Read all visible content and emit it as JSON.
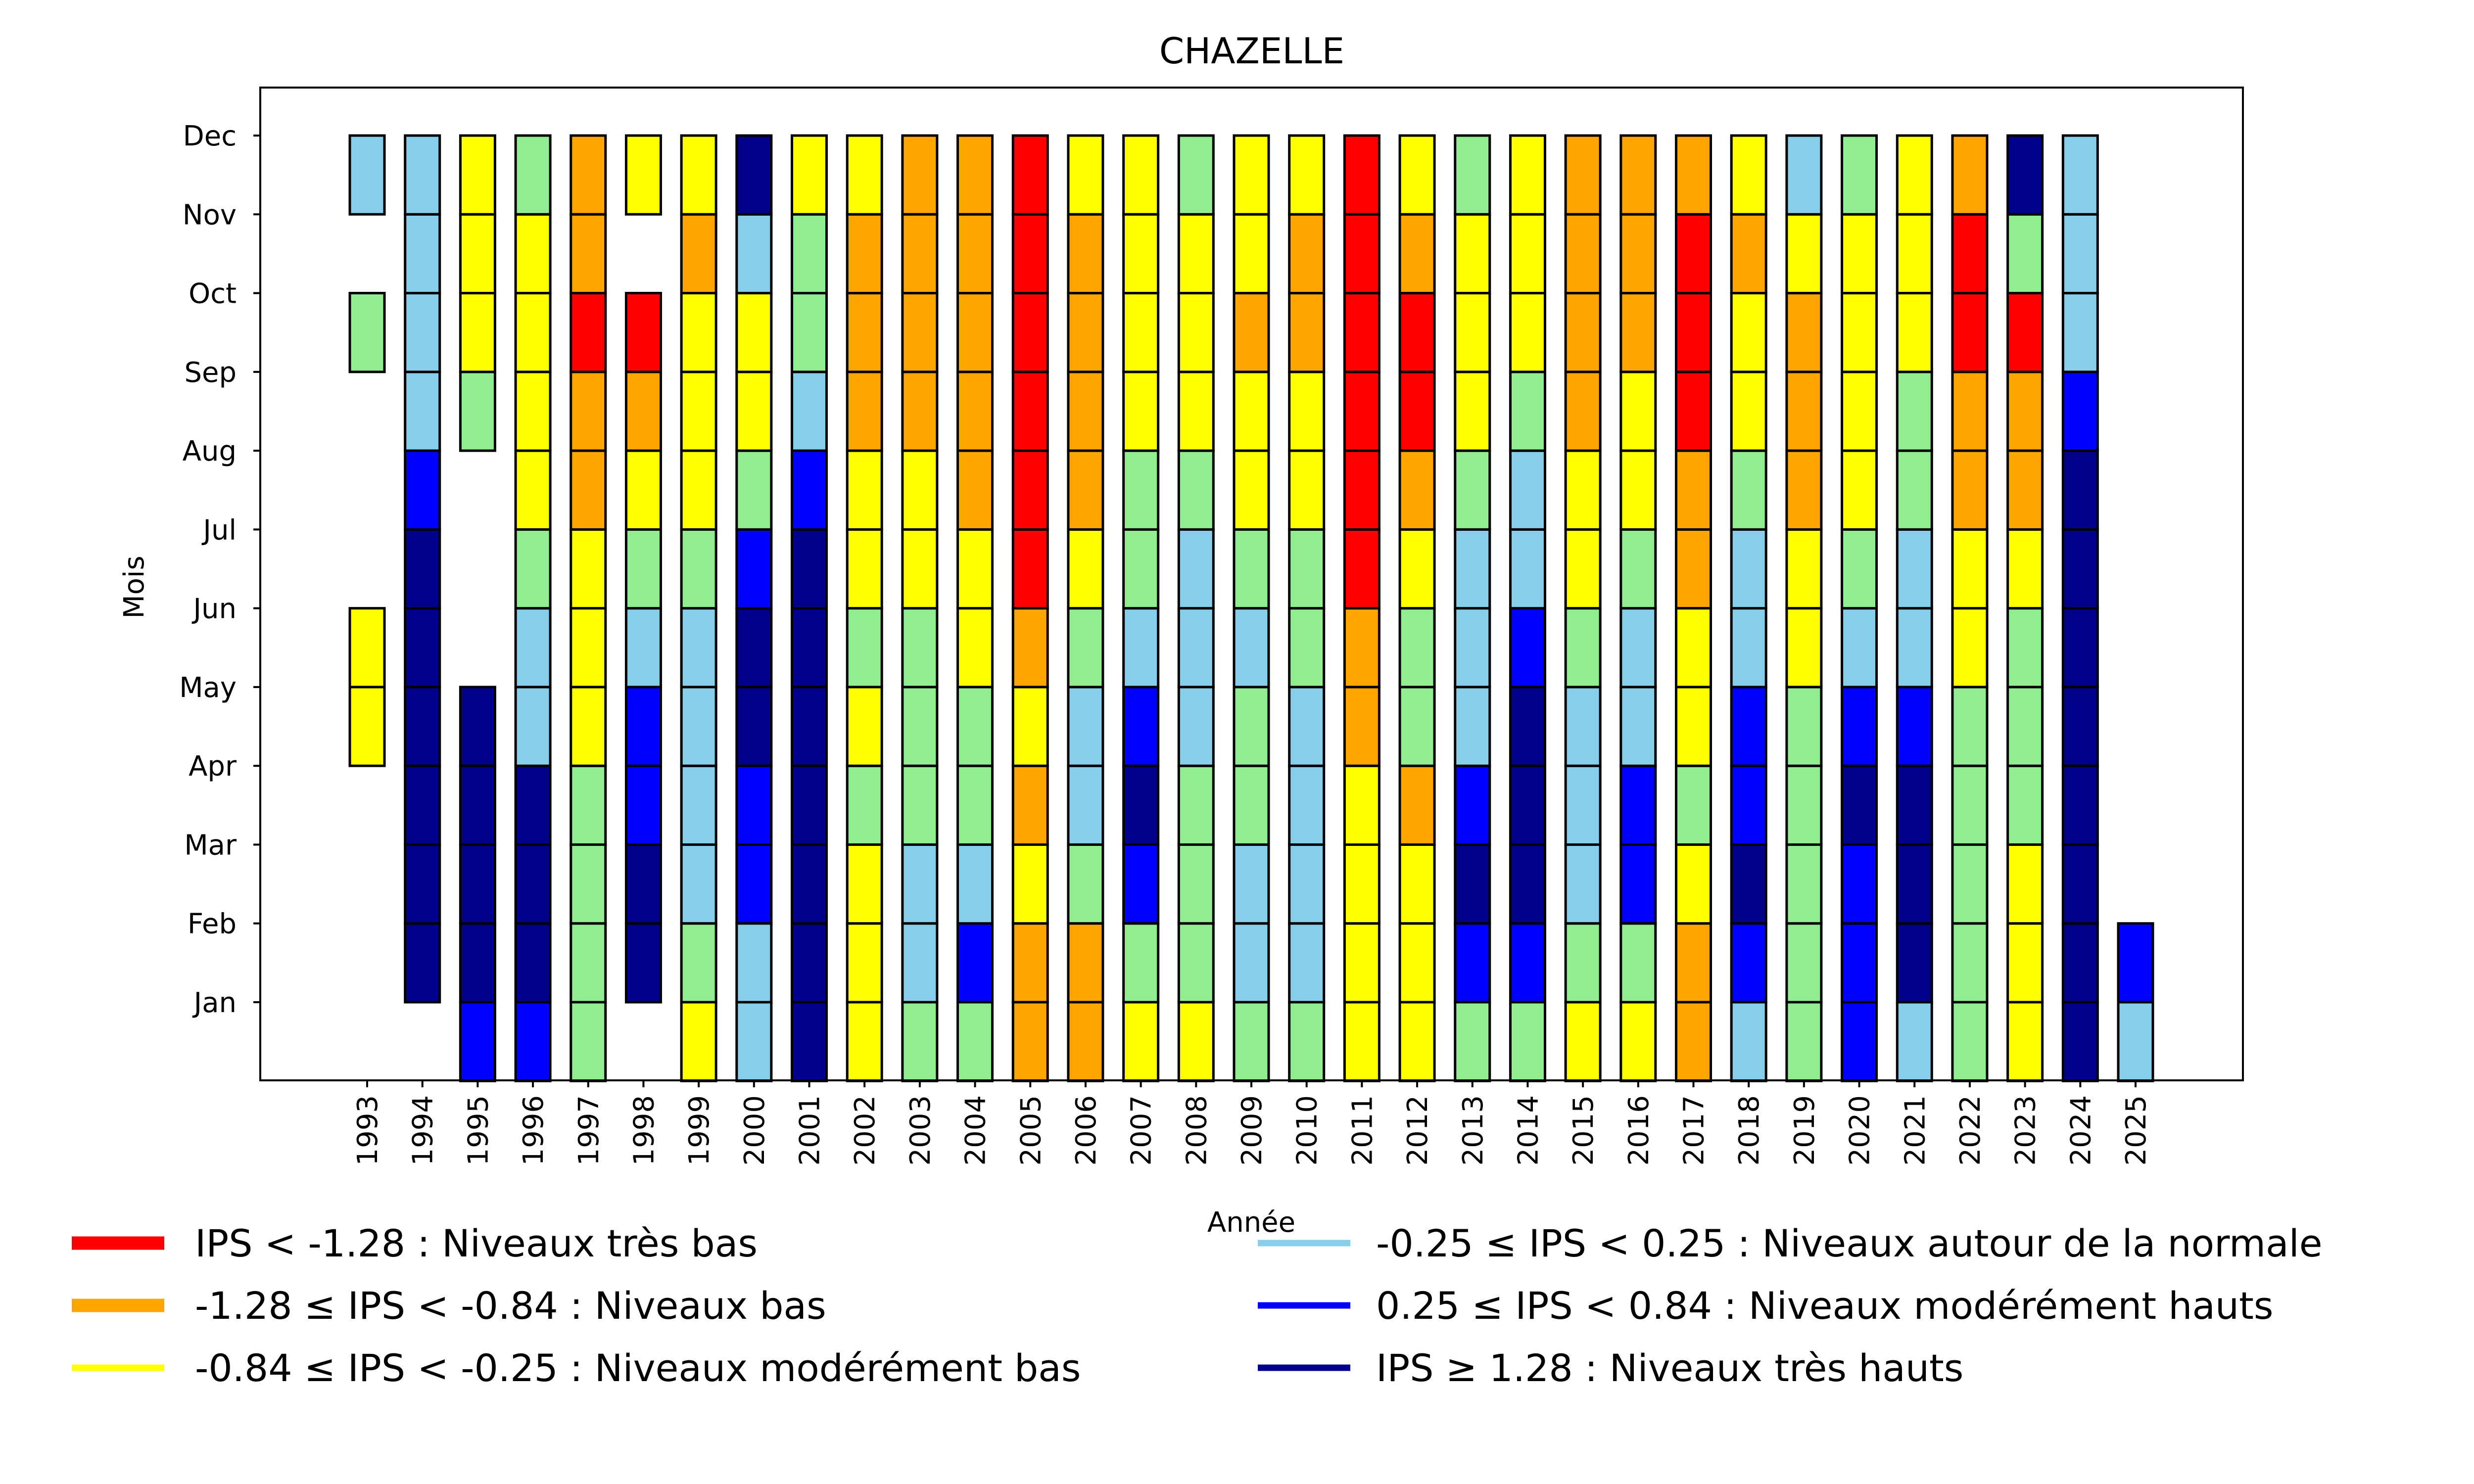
{
  "chart_data": {
    "type": "heatmap",
    "title": "CHAZELLE",
    "xlabel": "Année",
    "ylabel": "Mois",
    "x": [
      1993,
      1994,
      1995,
      1996,
      1997,
      1998,
      1999,
      2000,
      2001,
      2002,
      2003,
      2004,
      2005,
      2006,
      2007,
      2008,
      2009,
      2010,
      2011,
      2012,
      2013,
      2014,
      2015,
      2016,
      2017,
      2018,
      2019,
      2020,
      2021,
      2022,
      2023,
      2024,
      2025
    ],
    "y": [
      "Jan",
      "Feb",
      "Mar",
      "Apr",
      "May",
      "Jun",
      "Jul",
      "Aug",
      "Sep",
      "Oct",
      "Nov",
      "Dec"
    ],
    "grid": false,
    "legend_placement": "bottom",
    "categories": [
      {
        "code": "R",
        "label": "IPS < -1.28 : Niveaux très bas",
        "color": "#ff0000"
      },
      {
        "code": "O",
        "label": "-1.28 ≤ IPS < -0.84 : Niveaux bas",
        "color": "#ffa500"
      },
      {
        "code": "Y",
        "label": "-0.84 ≤ IPS < -0.25 : Niveaux modérément bas",
        "color": "#ffff00"
      },
      {
        "code": "G",
        "label": "-0.25 ≤ IPS < 0.25 : Niveaux autour de la normale",
        "color": "#90ee90",
        "legend_color": "#87ceeb"
      },
      {
        "code": "L",
        "label": "0.25 ≤ IPS < 0.84 : Niveaux modérément hauts",
        "color": "#87ceeb",
        "legend_color": "#0000ff"
      },
      {
        "code": "B",
        "label": "",
        "color": "#0000ff"
      },
      {
        "code": "N",
        "label": "IPS ≥ 1.28 : Niveaux très hauts",
        "color": "#00008b"
      }
    ],
    "legend": [
      {
        "label": "IPS < -1.28 : Niveaux très bas",
        "color": "#ff0000"
      },
      {
        "label": "-1.28 ≤ IPS < -0.84 : Niveaux bas",
        "color": "#ffa500"
      },
      {
        "label": "-0.84 ≤ IPS < -0.25 : Niveaux modérément bas",
        "color": "#ffff00"
      },
      {
        "label": "-0.25 ≤ IPS < 0.25 : Niveaux autour de la normale",
        "color": "#87ceeb"
      },
      {
        "label": "0.25 ≤ IPS < 0.84 : Niveaux modérément hauts",
        "color": "#0000ff"
      },
      {
        "label": "IPS ≥ 1.28 : Niveaux très hauts",
        "color": "#00008b"
      }
    ],
    "values": {
      "1993": [
        null,
        null,
        null,
        null,
        "Y",
        "Y",
        null,
        null,
        null,
        "G",
        null,
        "L"
      ],
      "1994": [
        null,
        "N",
        "N",
        "N",
        "N",
        "N",
        "N",
        "B",
        "L",
        "L",
        "L",
        "L"
      ],
      "1995": [
        "B",
        "N",
        "N",
        "N",
        "N",
        null,
        null,
        null,
        "G",
        "Y",
        "Y",
        "Y"
      ],
      "1996": [
        "B",
        "N",
        "N",
        "N",
        "L",
        "L",
        "G",
        "Y",
        "Y",
        "Y",
        "Y",
        "G"
      ],
      "1997": [
        "G",
        "G",
        "G",
        "G",
        "Y",
        "Y",
        "Y",
        "O",
        "O",
        "R",
        "O",
        "O"
      ],
      "1998": [
        null,
        "N",
        "N",
        "B",
        "B",
        "L",
        "G",
        "Y",
        "O",
        "R",
        null,
        "Y"
      ],
      "1999": [
        "Y",
        "G",
        "L",
        "L",
        "L",
        "L",
        "G",
        "Y",
        "Y",
        "Y",
        "O",
        "Y"
      ],
      "2000": [
        "L",
        "L",
        "B",
        "B",
        "N",
        "N",
        "B",
        "G",
        "Y",
        "Y",
        "L",
        "N"
      ],
      "2001": [
        "N",
        "N",
        "N",
        "N",
        "N",
        "N",
        "N",
        "B",
        "L",
        "G",
        "G",
        "Y"
      ],
      "2002": [
        "Y",
        "Y",
        "Y",
        "G",
        "Y",
        "G",
        "Y",
        "Y",
        "O",
        "O",
        "O",
        "Y"
      ],
      "2003": [
        "G",
        "L",
        "L",
        "G",
        "G",
        "G",
        "Y",
        "Y",
        "O",
        "O",
        "O",
        "O"
      ],
      "2004": [
        "G",
        "B",
        "L",
        "G",
        "G",
        "Y",
        "Y",
        "O",
        "O",
        "O",
        "O",
        "O"
      ],
      "2005": [
        "O",
        "O",
        "Y",
        "O",
        "Y",
        "O",
        "R",
        "R",
        "R",
        "R",
        "R",
        "R"
      ],
      "2006": [
        "O",
        "O",
        "G",
        "L",
        "L",
        "G",
        "Y",
        "O",
        "O",
        "O",
        "O",
        "Y"
      ],
      "2007": [
        "Y",
        "G",
        "B",
        "N",
        "B",
        "L",
        "G",
        "G",
        "Y",
        "Y",
        "Y",
        "Y"
      ],
      "2008": [
        "Y",
        "G",
        "G",
        "G",
        "L",
        "L",
        "L",
        "G",
        "Y",
        "Y",
        "Y",
        "G"
      ],
      "2009": [
        "G",
        "L",
        "L",
        "G",
        "G",
        "L",
        "G",
        "Y",
        "Y",
        "O",
        "Y",
        "Y"
      ],
      "2010": [
        "G",
        "L",
        "L",
        "L",
        "L",
        "G",
        "G",
        "Y",
        "Y",
        "O",
        "O",
        "Y"
      ],
      "2011": [
        "Y",
        "Y",
        "Y",
        "Y",
        "O",
        "O",
        "R",
        "R",
        "R",
        "R",
        "R",
        "R"
      ],
      "2012": [
        "Y",
        "Y",
        "Y",
        "O",
        "G",
        "G",
        "Y",
        "O",
        "R",
        "R",
        "O",
        "Y"
      ],
      "2013": [
        "G",
        "B",
        "N",
        "B",
        "L",
        "L",
        "L",
        "G",
        "Y",
        "Y",
        "Y",
        "G"
      ],
      "2014": [
        "G",
        "B",
        "N",
        "N",
        "N",
        "B",
        "L",
        "L",
        "G",
        "Y",
        "Y",
        "Y"
      ],
      "2015": [
        "Y",
        "G",
        "L",
        "L",
        "L",
        "G",
        "Y",
        "Y",
        "O",
        "O",
        "O",
        "O"
      ],
      "2016": [
        "Y",
        "G",
        "B",
        "B",
        "L",
        "L",
        "G",
        "Y",
        "Y",
        "O",
        "O",
        "O"
      ],
      "2017": [
        "O",
        "O",
        "Y",
        "G",
        "Y",
        "Y",
        "O",
        "O",
        "R",
        "R",
        "R",
        "O"
      ],
      "2018": [
        "L",
        "B",
        "N",
        "B",
        "B",
        "L",
        "L",
        "G",
        "Y",
        "Y",
        "O",
        "Y"
      ],
      "2019": [
        "G",
        "G",
        "G",
        "G",
        "G",
        "Y",
        "Y",
        "O",
        "O",
        "O",
        "Y",
        "L"
      ],
      "2020": [
        "B",
        "B",
        "B",
        "N",
        "B",
        "L",
        "G",
        "Y",
        "Y",
        "Y",
        "Y",
        "G"
      ],
      "2021": [
        "L",
        "N",
        "N",
        "N",
        "B",
        "L",
        "L",
        "G",
        "G",
        "Y",
        "Y",
        "Y"
      ],
      "2022": [
        "G",
        "G",
        "G",
        "G",
        "G",
        "Y",
        "Y",
        "O",
        "O",
        "R",
        "R",
        "O"
      ],
      "2023": [
        "Y",
        "Y",
        "Y",
        "G",
        "G",
        "G",
        "Y",
        "O",
        "O",
        "R",
        "G",
        "N"
      ],
      "2024": [
        "N",
        "N",
        "N",
        "N",
        "N",
        "N",
        "N",
        "N",
        "B",
        "L",
        "L",
        "L"
      ],
      "2025": [
        "L",
        "B",
        null,
        null,
        null,
        null,
        null,
        null,
        null,
        null,
        null,
        null
      ]
    }
  }
}
